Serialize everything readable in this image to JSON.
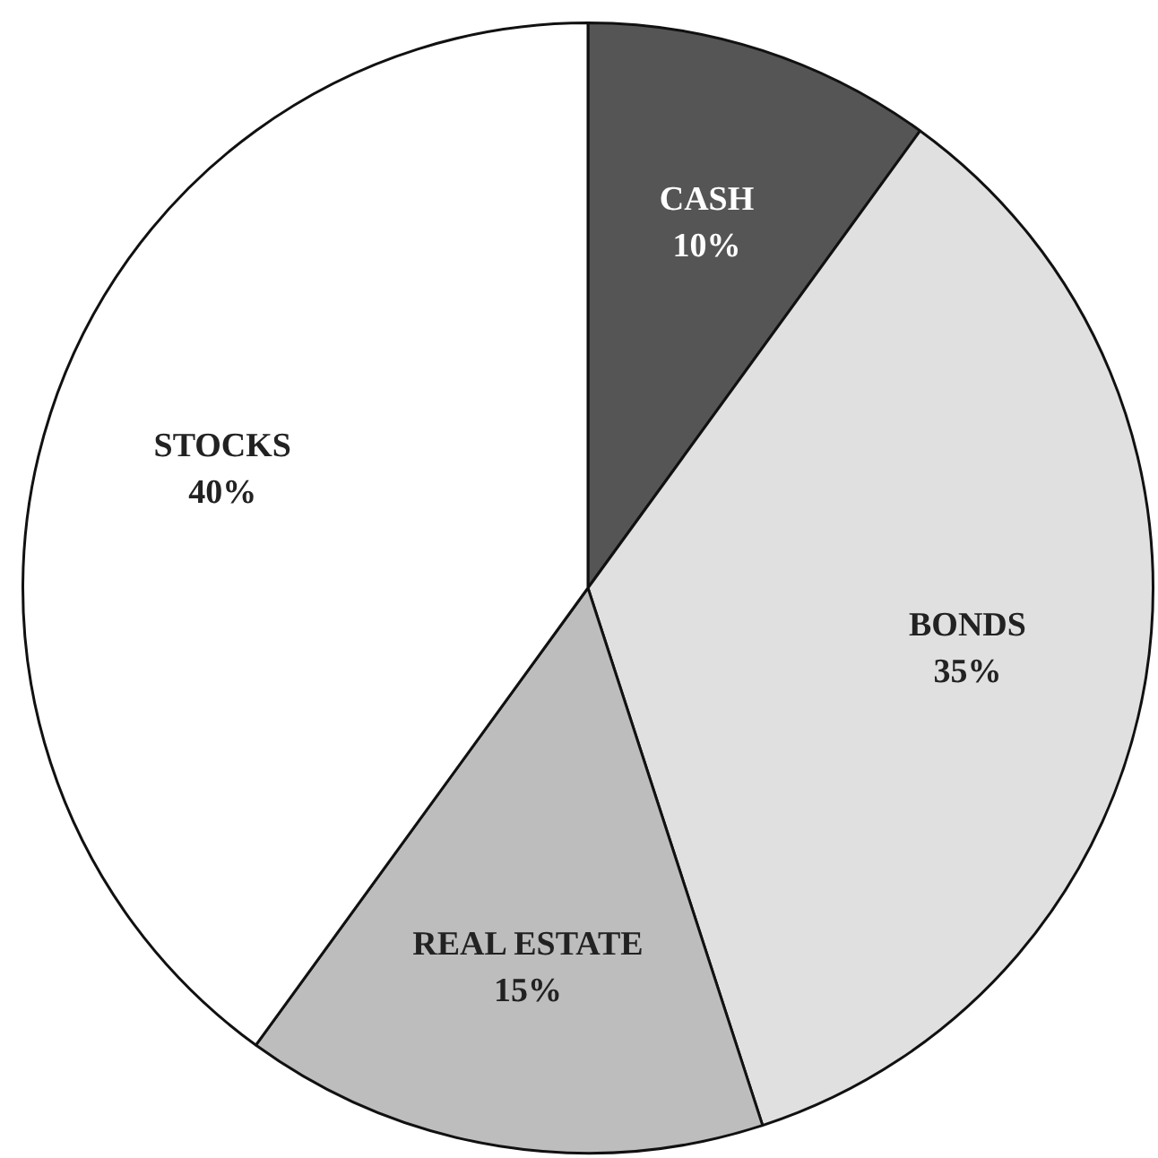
{
  "chart_data": {
    "type": "pie",
    "categories": [
      "CASH",
      "BONDS",
      "REAL ESTATE",
      "STOCKS"
    ],
    "values": [
      10,
      35,
      15,
      40
    ],
    "colors": [
      "#555555",
      "#e0e0e0",
      "#bdbdbd",
      "#ffffff"
    ],
    "value_labels": [
      "10%",
      "35%",
      "15%",
      "40%"
    ],
    "legend": false
  }
}
